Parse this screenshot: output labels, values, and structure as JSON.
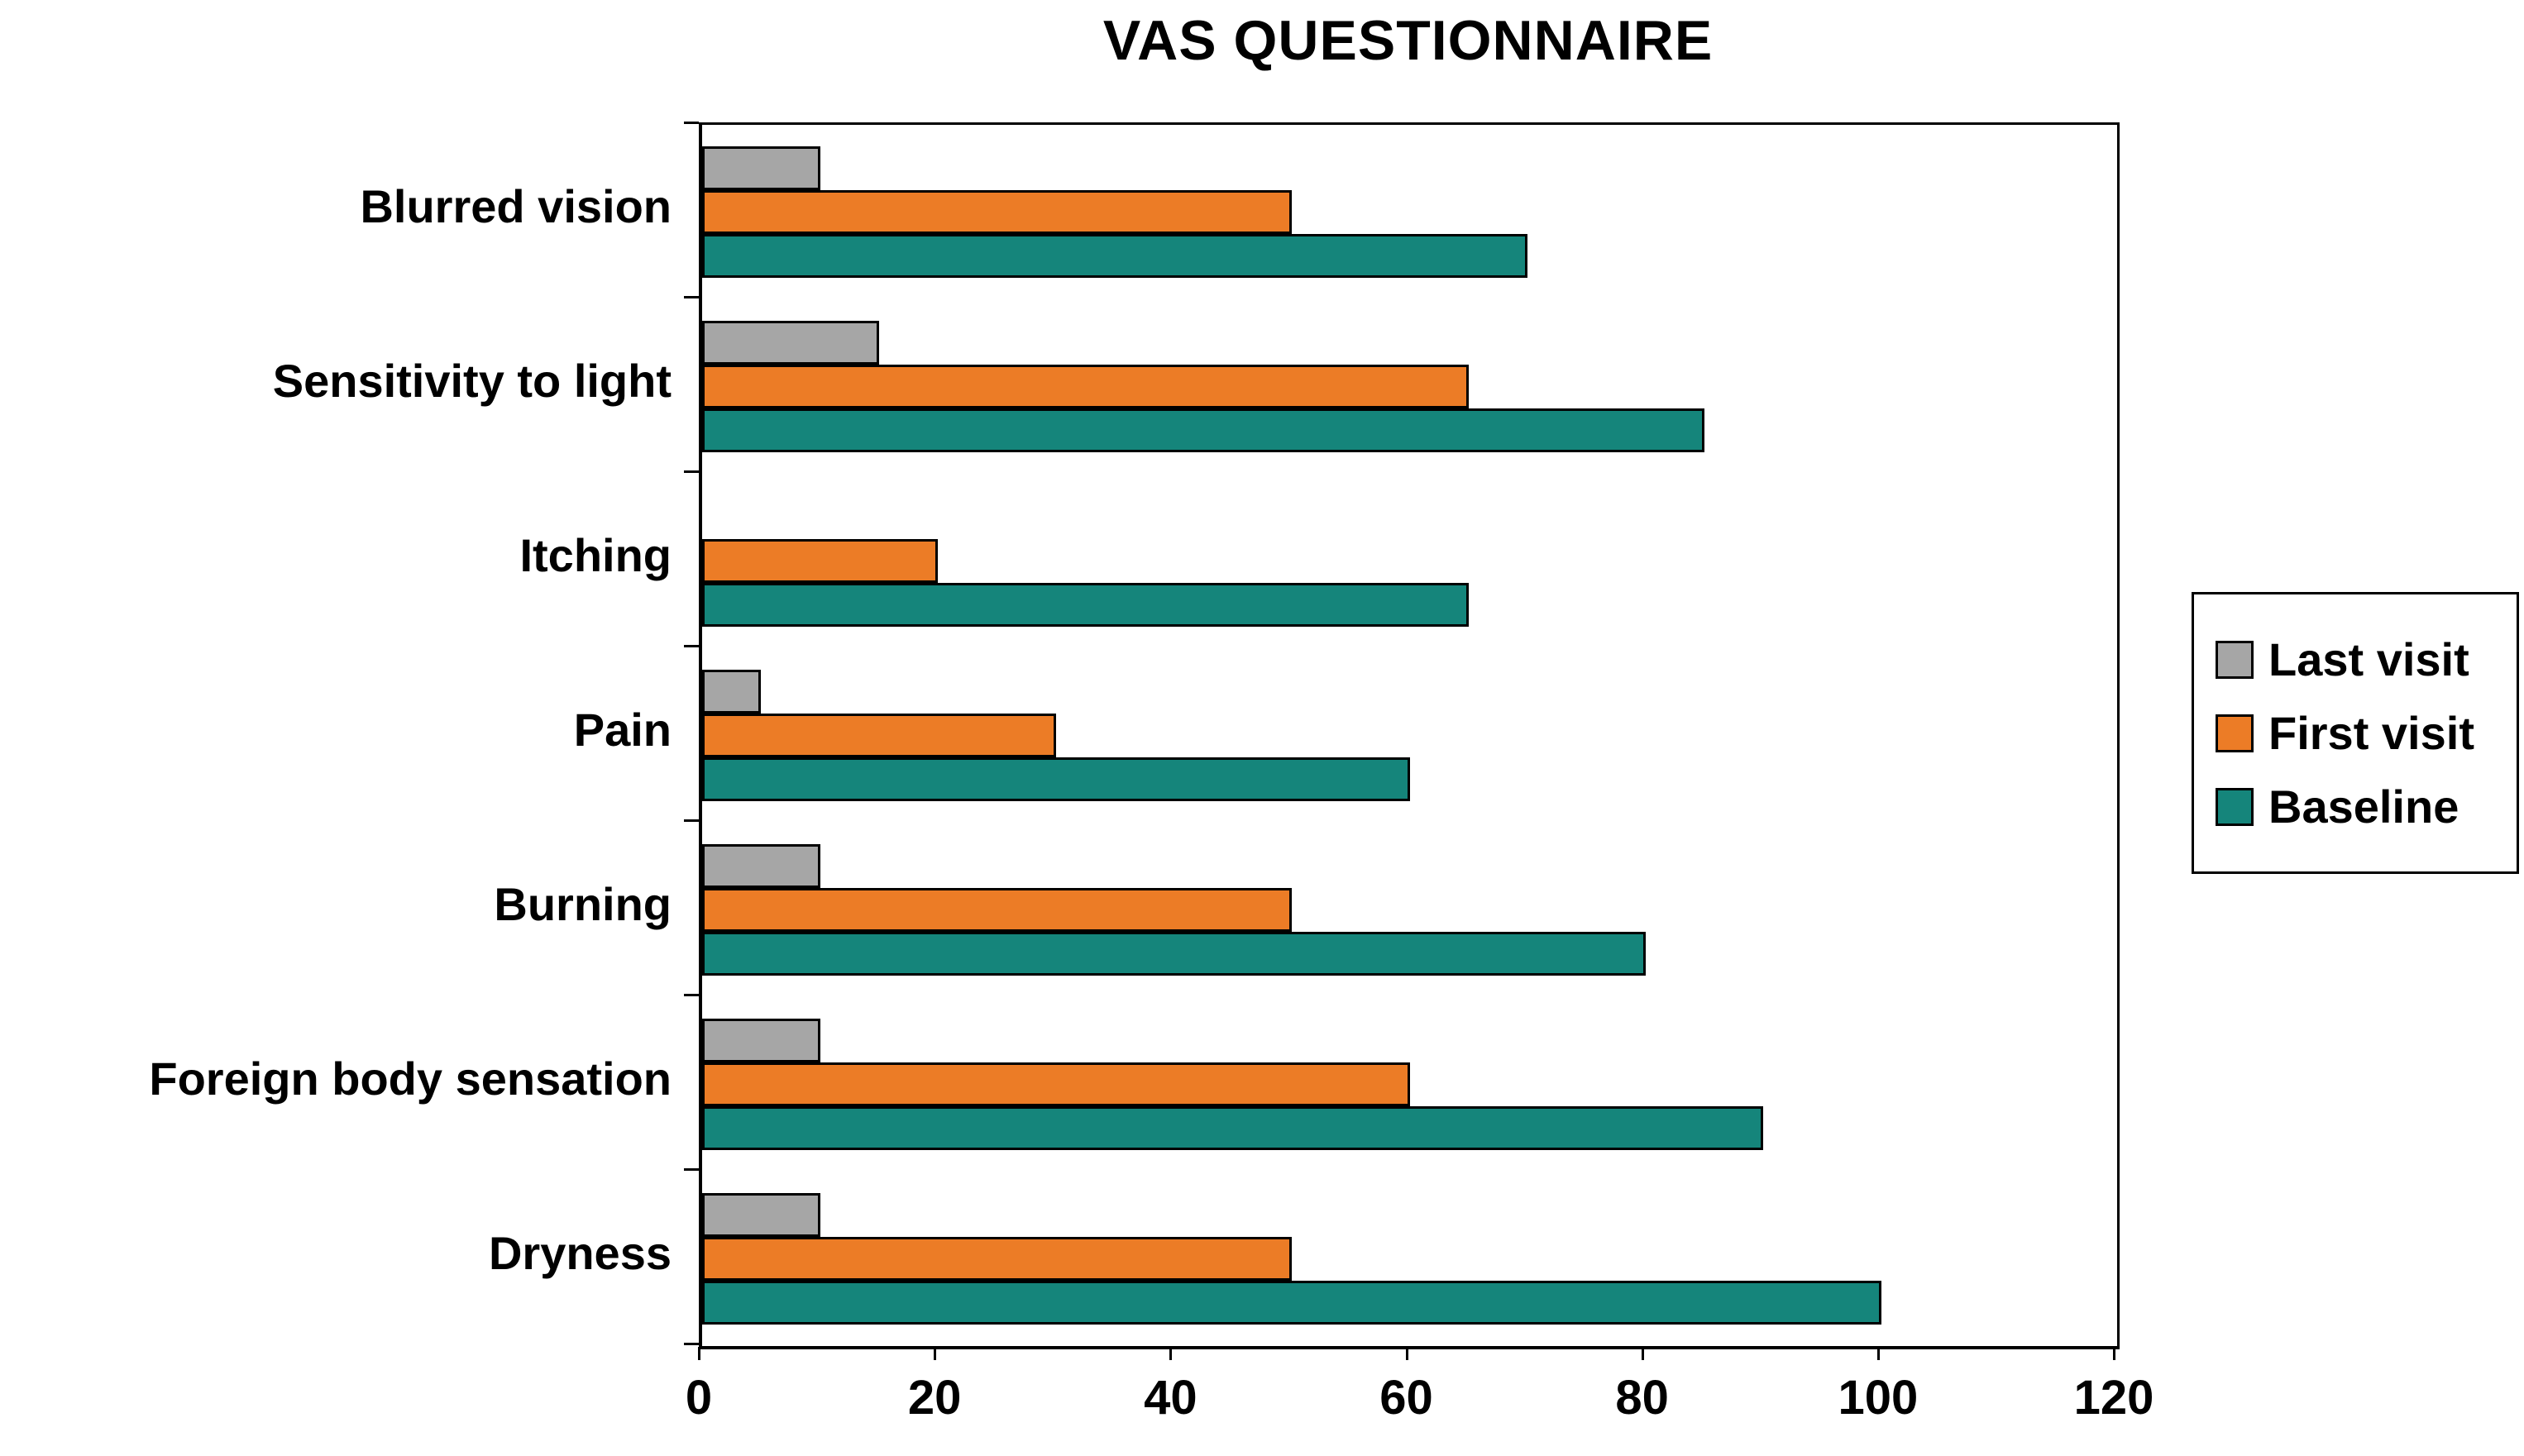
{
  "title": "VAS QUESTIONNAIRE",
  "background_color": "#FFFFFF",
  "chart_data": {
    "type": "bar",
    "orientation": "horizontal",
    "title": "VAS QUESTIONNAIRE",
    "categories": [
      "Blurred vision",
      "Sensitivity to light",
      "Itching",
      "Pain",
      "Burning",
      "Foreign body sensation",
      "Dryness"
    ],
    "series": [
      {
        "name": "Last visit",
        "color": "#A6A6A6",
        "values": [
          10,
          15,
          0,
          5,
          10,
          10,
          10
        ]
      },
      {
        "name": "First visit",
        "color": "#EC7C26",
        "values": [
          50,
          65,
          20,
          30,
          50,
          60,
          50
        ]
      },
      {
        "name": "Baseline",
        "color": "#15857B",
        "values": [
          70,
          85,
          65,
          60,
          80,
          90,
          100
        ]
      }
    ],
    "xlabel": "",
    "ylabel": "",
    "xlim": [
      0,
      120
    ],
    "x_ticks": [
      0,
      20,
      40,
      60,
      80,
      100,
      120
    ],
    "grid": false,
    "legend": {
      "position": "right",
      "entries": [
        "Last visit",
        "First visit",
        "Baseline"
      ]
    },
    "axis_color": "#000000",
    "bar_border_color": "#000000"
  }
}
